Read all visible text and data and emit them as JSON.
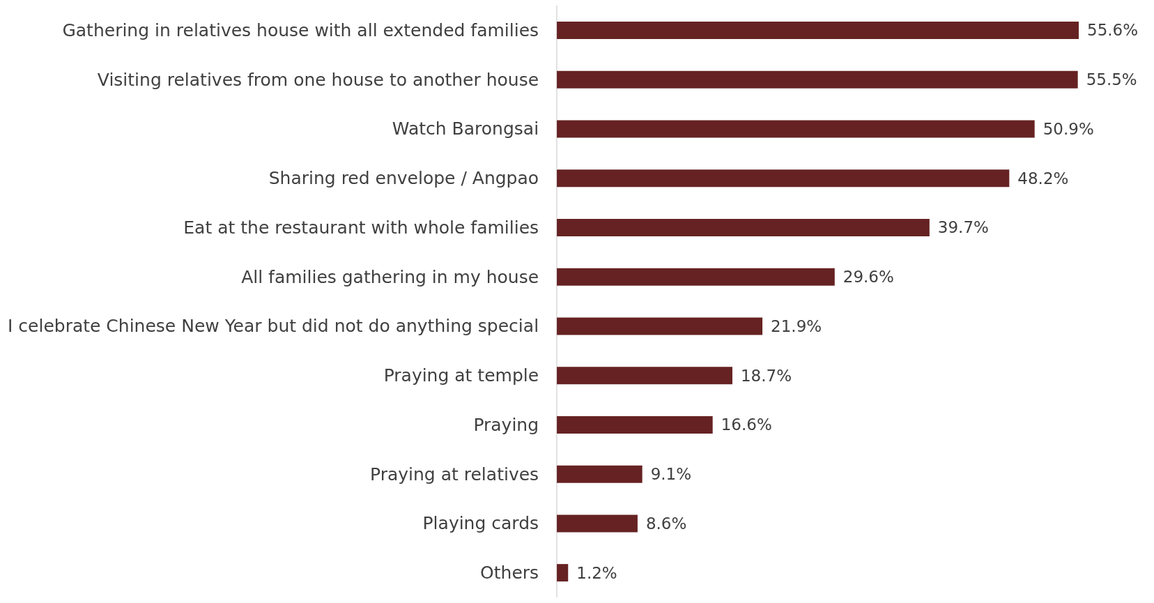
{
  "chart_data": {
    "type": "bar",
    "orientation": "horizontal",
    "color": "#662222",
    "categories": [
      "Gathering in relatives house with all extended families",
      "Visiting relatives from one house to another house",
      "Watch Barongsai",
      "Sharing red envelope / Angpao",
      "Eat at the restaurant with whole families",
      "All families gathering in my house",
      "I celebrate Chinese New Year but did not do anything special",
      "Praying at temple",
      "Praying",
      "Praying at relatives",
      "Playing cards",
      "Others"
    ],
    "values": [
      55.6,
      55.5,
      50.9,
      48.2,
      39.7,
      29.6,
      21.9,
      18.7,
      16.6,
      9.1,
      8.6,
      1.2
    ],
    "value_labels": [
      "55.6%",
      "55.5%",
      "50.9%",
      "48.2%",
      "39.7%",
      "29.6%",
      "21.9%",
      "18.7%",
      "16.6%",
      "9.1%",
      "8.6%",
      "1.2%"
    ]
  }
}
